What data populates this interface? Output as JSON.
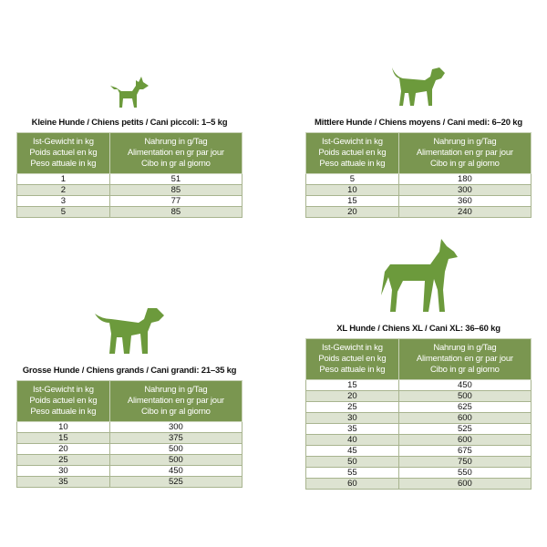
{
  "header": {
    "col1": [
      "Ist-Gewicht in kg",
      "Poids actuel en kg",
      "Peso attuale in kg"
    ],
    "col2": [
      "Nahrung in g/Tag",
      "Alimentation en gr par jour",
      "Cibo in gr al giorno"
    ]
  },
  "colors": {
    "header": "#7a9650",
    "alt_row": "#dde3d1",
    "dog": "#6c9a3c"
  },
  "tables": [
    {
      "title": "Kleine Hunde / Chiens petits / Cani piccoli: 1–5 kg",
      "rows": [
        [
          "1",
          "51"
        ],
        [
          "2",
          "85"
        ],
        [
          "3",
          "77"
        ],
        [
          "5",
          "85"
        ]
      ]
    },
    {
      "title": "Mittlere Hunde / Chiens moyens / Cani medi: 6–20 kg",
      "rows": [
        [
          "5",
          "180"
        ],
        [
          "10",
          "300"
        ],
        [
          "15",
          "360"
        ],
        [
          "20",
          "240"
        ]
      ]
    },
    {
      "title": "Grosse Hunde / Chiens grands / Cani grandi: 21–35 kg",
      "rows": [
        [
          "10",
          "300"
        ],
        [
          "15",
          "375"
        ],
        [
          "20",
          "500"
        ],
        [
          "25",
          "500"
        ],
        [
          "30",
          "450"
        ],
        [
          "35",
          "525"
        ]
      ]
    },
    {
      "title": "XL Hunde / Chiens XL / Cani XL: 36–60 kg",
      "rows": [
        [
          "15",
          "450"
        ],
        [
          "20",
          "500"
        ],
        [
          "25",
          "625"
        ],
        [
          "30",
          "600"
        ],
        [
          "35",
          "525"
        ],
        [
          "40",
          "600"
        ],
        [
          "45",
          "675"
        ],
        [
          "50",
          "750"
        ],
        [
          "55",
          "550"
        ],
        [
          "60",
          "600"
        ]
      ]
    }
  ]
}
